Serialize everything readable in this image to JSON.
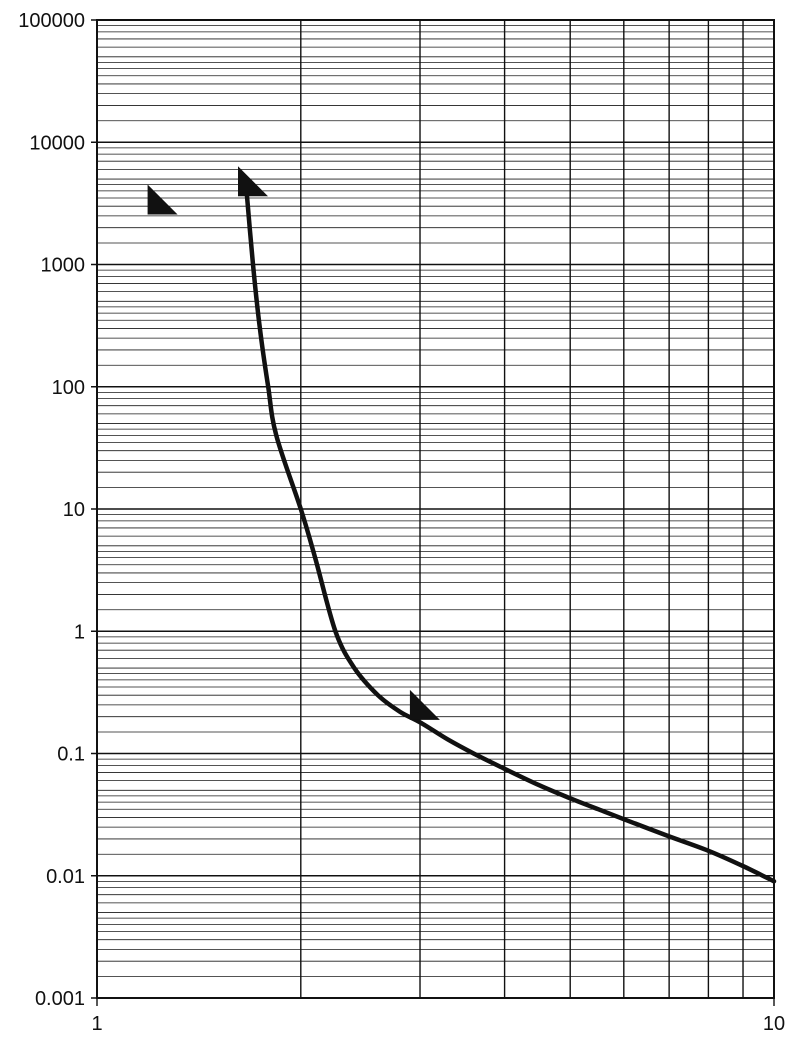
{
  "chart_data": {
    "type": "line",
    "title": "",
    "xlabel": "",
    "ylabel": "",
    "xscale": "log",
    "yscale": "log",
    "xlim": [
      1,
      10
    ],
    "ylim": [
      0.001,
      100000
    ],
    "grid": true,
    "x_tick_labels": [
      "1",
      "10"
    ],
    "y_tick_labels": [
      "0.001",
      "0.01",
      "0.1",
      "1",
      "10",
      "100",
      "1000",
      "10000",
      "100000"
    ],
    "series": [
      {
        "x": [
          1.66,
          1.7,
          1.74,
          1.79,
          1.84,
          2.0,
          2.1,
          2.25,
          2.4,
          2.6,
          2.8,
          3.0,
          3.3,
          3.6,
          4.0,
          4.5,
          5.0,
          5.5,
          6.0,
          7.0,
          8.0,
          9.0,
          10.0
        ],
        "y": [
          4500,
          1000,
          300,
          100,
          40,
          10,
          4,
          1,
          0.5,
          0.3,
          0.22,
          0.18,
          0.13,
          0.1,
          0.075,
          0.055,
          0.043,
          0.035,
          0.029,
          0.021,
          0.016,
          0.012,
          0.009
        ]
      }
    ],
    "markers": [
      {
        "shape": "triangle",
        "x": 1.25,
        "y": 3400,
        "direction": "upper-left"
      },
      {
        "shape": "triangle",
        "x": 1.7,
        "y": 4800,
        "direction": "upper-left"
      },
      {
        "shape": "triangle",
        "x": 3.05,
        "y": 0.25,
        "direction": "upper-left"
      }
    ],
    "colors": {
      "line": "#111111",
      "grid": "#111111",
      "background": "#ffffff"
    }
  }
}
